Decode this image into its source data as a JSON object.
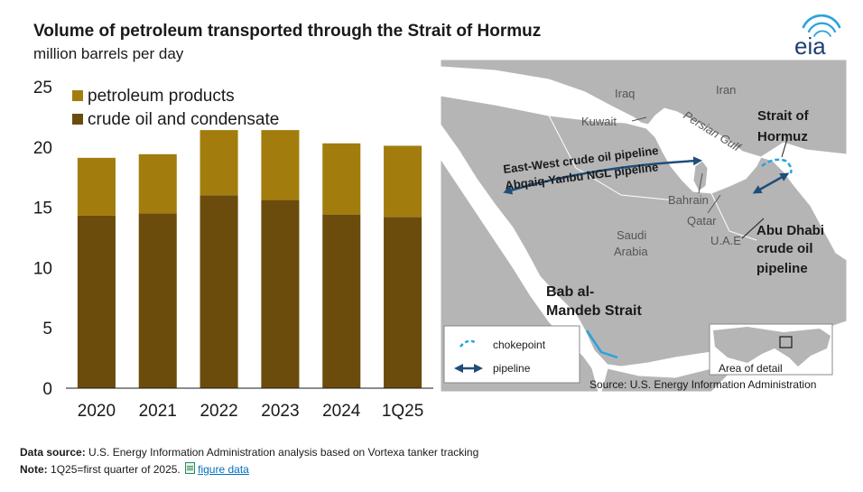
{
  "header": {
    "title": "Volume of petroleum transported through the Strait of Hormuz",
    "subtitle": "million barrels per day",
    "logo_text": "eia"
  },
  "chart_data": {
    "type": "bar",
    "stacked": true,
    "categories": [
      "2020",
      "2021",
      "2022",
      "2023",
      "2024",
      "1Q25"
    ],
    "series": [
      {
        "name": "crude oil and condensate",
        "values": [
          14.3,
          14.5,
          16.0,
          15.6,
          14.4,
          14.2
        ],
        "color": "#6b4c0c"
      },
      {
        "name": "petroleum products",
        "values": [
          4.8,
          4.9,
          5.4,
          5.8,
          5.9,
          5.9
        ],
        "color": "#a27d0e"
      }
    ],
    "ylim": [
      0,
      25
    ],
    "yticks": [
      "0",
      "5",
      "10",
      "15",
      "20",
      "25"
    ],
    "legend_position": "top-left",
    "grid": false,
    "xlabel": "",
    "ylabel": ""
  },
  "map": {
    "labels": {
      "iraq": "Iraq",
      "iran": "Iran",
      "kuwait": "Kuwait",
      "persian_gulf": "Persian Gulf",
      "bahrain": "Bahrain",
      "qatar": "Qatar",
      "uae": "U.A.E",
      "saudi_line1": "Saudi",
      "saudi_line2": "Arabia",
      "strait_hormuz_line1": "Strait of",
      "strait_hormuz_line2": "Hormuz",
      "pipeline_ew_line1": "East-West crude oil pipeline",
      "pipeline_ew_line2": "Abqaiq-Yanbu NGL pipeline",
      "abu_dhabi_line1": "Abu Dhabi",
      "abu_dhabi_line2": "crude oil",
      "abu_dhabi_line3": "pipeline",
      "bab_line1": "Bab al-",
      "bab_line2": "Mandeb Strait",
      "area_of_detail": "Area of detail",
      "source": "Source: U.S. Energy Information Administration"
    },
    "legend": {
      "chokepoint": "chokepoint",
      "pipeline": "pipeline"
    },
    "colors": {
      "water": "#ffffff",
      "land": "#b5b5b5",
      "chokepoint": "#29a3dc",
      "pipeline": "#1f4e79"
    }
  },
  "footer": {
    "source_label": "Data source:",
    "source_text": "U.S. Energy Information Administration analysis based on Vortexa tanker tracking",
    "note_label": "Note:",
    "note_text": "1Q25=first quarter of 2025.",
    "figure_data_link": "figure data"
  }
}
